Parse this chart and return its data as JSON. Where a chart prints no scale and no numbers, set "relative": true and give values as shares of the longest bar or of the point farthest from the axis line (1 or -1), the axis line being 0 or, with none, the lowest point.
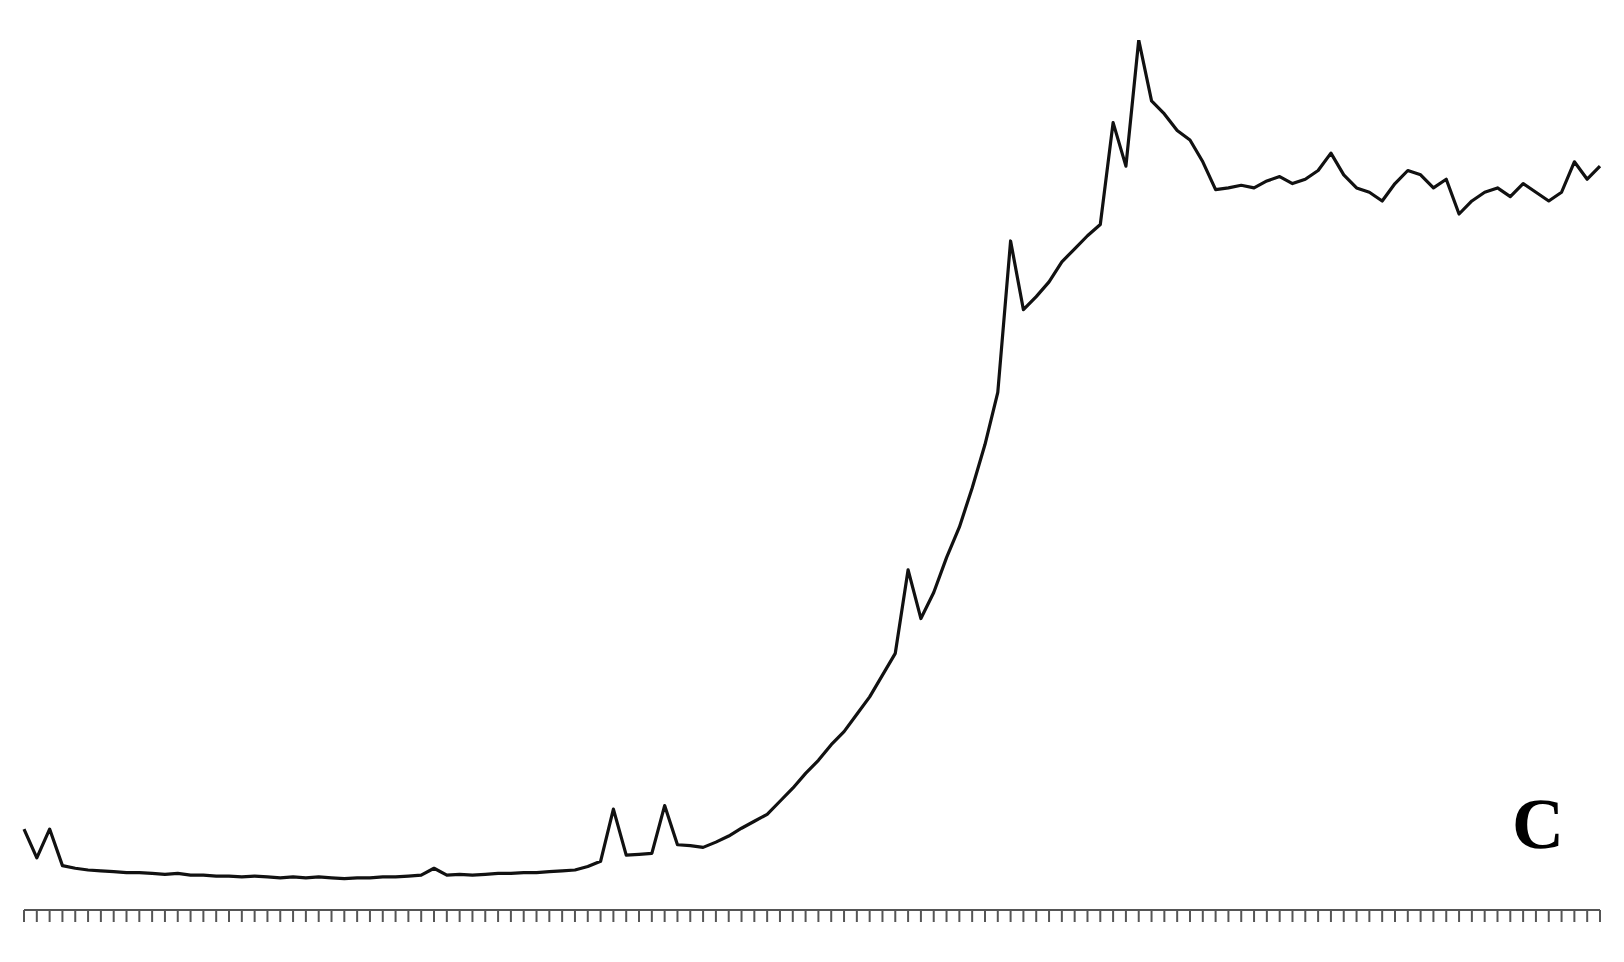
{
  "chart_data": {
    "type": "line",
    "relative": true,
    "grid": false,
    "legend": false,
    "marker": "none",
    "annotations": [
      "C"
    ],
    "categories": [
      null,
      null,
      null,
      null,
      null,
      null,
      null,
      null,
      null,
      null,
      null,
      null,
      null,
      null,
      null,
      null,
      null,
      null,
      null,
      null,
      null,
      null,
      null,
      null,
      null,
      null,
      null,
      null,
      null,
      null,
      null,
      null,
      null,
      null,
      null,
      null,
      null,
      null,
      null,
      null,
      null,
      null,
      null,
      null,
      null,
      null,
      null,
      null,
      null,
      null,
      null,
      null,
      null,
      null,
      null,
      null,
      null,
      null,
      null,
      null,
      null,
      null,
      null,
      null,
      null,
      null,
      null,
      null,
      null,
      null,
      null,
      null,
      null,
      null,
      null,
      null,
      null,
      null,
      null,
      null,
      null,
      null,
      null,
      null,
      null,
      null,
      null,
      null,
      null,
      null,
      null,
      null,
      null,
      null,
      null,
      null,
      null,
      null,
      null,
      null,
      null,
      null,
      null,
      null,
      null,
      null,
      null,
      null,
      null,
      null,
      null,
      null,
      null,
      null,
      null,
      null,
      null,
      null,
      null,
      null,
      null,
      null,
      null,
      null
    ],
    "series": [
      {
        "color": "#111111",
        "values": [
          0.093,
          0.06,
          0.093,
          0.051,
          0.048,
          0.046,
          0.045,
          0.044,
          0.043,
          0.043,
          0.042,
          0.041,
          0.042,
          0.04,
          0.04,
          0.039,
          0.039,
          0.038,
          0.039,
          0.038,
          0.037,
          0.038,
          0.037,
          0.038,
          0.037,
          0.036,
          0.037,
          0.037,
          0.038,
          0.038,
          0.039,
          0.04,
          0.048,
          0.04,
          0.041,
          0.04,
          0.041,
          0.042,
          0.042,
          0.043,
          0.043,
          0.044,
          0.045,
          0.046,
          0.05,
          0.056,
          0.116,
          0.063,
          0.064,
          0.065,
          0.12,
          0.075,
          0.074,
          0.072,
          0.078,
          0.085,
          0.094,
          0.102,
          0.11,
          0.125,
          0.14,
          0.157,
          0.172,
          0.19,
          0.205,
          0.225,
          0.245,
          0.27,
          0.295,
          0.391,
          0.335,
          0.365,
          0.405,
          0.44,
          0.485,
          0.535,
          0.595,
          0.769,
          0.69,
          0.705,
          0.722,
          0.745,
          0.76,
          0.775,
          0.788,
          0.905,
          0.855,
          1.0,
          0.93,
          0.915,
          0.896,
          0.885,
          0.86,
          0.828,
          0.83,
          0.833,
          0.83,
          0.838,
          0.843,
          0.835,
          0.84,
          0.85,
          0.87,
          0.845,
          0.83,
          0.825,
          0.815,
          0.835,
          0.85,
          0.845,
          0.83,
          0.84,
          0.8,
          0.815,
          0.825,
          0.83,
          0.82,
          0.835,
          0.825,
          0.815,
          0.825,
          0.86,
          0.84,
          0.855
        ]
      }
    ]
  }
}
